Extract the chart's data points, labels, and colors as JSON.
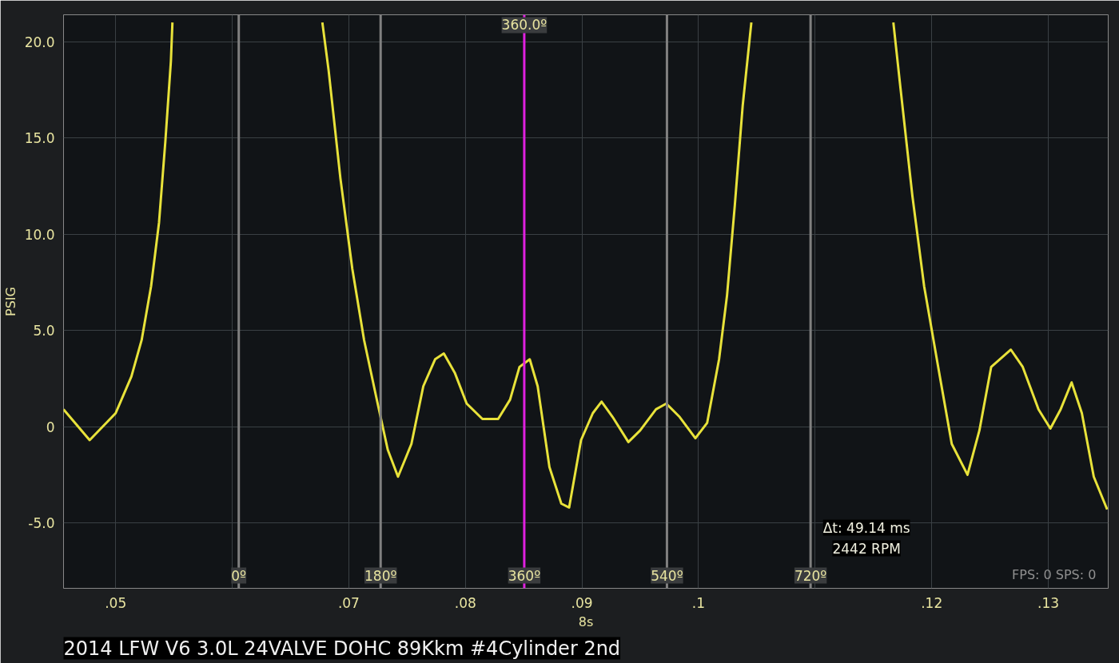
{
  "chart_data": {
    "type": "line",
    "title": "2014 LFW V6 3.0L 24VALVE DOHC 89Kkm #4Cylinder 2nd",
    "xlabel": "8s",
    "ylabel": "PSIG",
    "x": [
      0.04553,
      0.04777,
      0.05,
      0.05135,
      0.05223,
      0.05304,
      0.05372,
      0.05426,
      0.05474,
      0.05487,
      null,
      0.06773,
      0.06827,
      0.06928,
      0.0703,
      0.07131,
      0.07233,
      0.07334,
      0.07422,
      0.07537,
      0.07639,
      0.0774,
      0.07815,
      0.07909,
      0.08011,
      0.08146,
      0.08281,
      0.08383,
      0.08464,
      0.08552,
      0.0862,
      0.08721,
      0.08823,
      0.0889,
      0.08992,
      0.09093,
      0.09168,
      0.09263,
      0.09398,
      0.09499,
      0.09635,
      0.09723,
      0.09838,
      0.09973,
      0.10074,
      0.10176,
      0.10244,
      0.10311,
      0.10379,
      0.10453,
      null,
      0.11671,
      0.11732,
      0.11834,
      0.11935,
      0.1207,
      0.12172,
      0.12307,
      0.12409,
      0.1251,
      0.12679,
      0.12781,
      0.12916,
      0.13018,
      0.13106,
      0.132,
      0.13288,
      0.1339,
      0.13505
    ],
    "series": [
      {
        "color": "#e8e23a",
        "values": [
          0.9,
          -0.7,
          0.7,
          2.6,
          4.5,
          7.3,
          10.6,
          14.8,
          19.0,
          21.0,
          null,
          21.0,
          18.5,
          12.9,
          8.2,
          4.5,
          1.6,
          -1.2,
          -2.6,
          -0.9,
          2.1,
          3.5,
          3.8,
          2.8,
          1.2,
          0.4,
          0.4,
          1.4,
          3.1,
          3.5,
          2.1,
          -2.1,
          -4.0,
          -4.2,
          -0.7,
          0.7,
          1.3,
          0.5,
          -0.8,
          -0.2,
          0.9,
          1.2,
          0.5,
          -0.6,
          0.2,
          3.5,
          6.8,
          11.5,
          16.7,
          21.0,
          null,
          21.0,
          17.6,
          12.0,
          7.3,
          2.6,
          -0.9,
          -2.5,
          -0.2,
          3.1,
          4.0,
          3.1,
          0.9,
          -0.1,
          0.9,
          2.3,
          0.7,
          -2.6,
          -4.3
        ]
      }
    ],
    "xlim": [
      0.04553,
      0.13514
    ],
    "ylim": [
      -8.4,
      21.4
    ],
    "xticks": [
      {
        "value": 0.05,
        "label": ".05"
      },
      {
        "value": 0.06,
        "label": null
      },
      {
        "value": 0.07,
        "label": ".07"
      },
      {
        "value": 0.08,
        "label": ".08"
      },
      {
        "value": 0.09,
        "label": ".09"
      },
      {
        "value": 0.1,
        "label": ".1"
      },
      {
        "value": 0.11,
        "label": null
      },
      {
        "value": 0.12,
        "label": ".12"
      },
      {
        "value": 0.13,
        "label": ".13"
      }
    ],
    "yticks": [
      {
        "value": -5,
        "label": "-5.0"
      },
      0,
      {
        "value": 5,
        "label": "5.0"
      },
      {
        "value": 10,
        "label": "10.0"
      },
      {
        "value": 15,
        "label": "15.0"
      },
      {
        "value": 20,
        "label": "20.0"
      }
    ],
    "ref_lines": [
      {
        "axis": "x",
        "value": 0.06056,
        "color": "#808080"
      },
      {
        "axis": "x",
        "value": 0.07273,
        "color": "#808080"
      },
      {
        "axis": "x",
        "value": 0.08505,
        "color": "#e020e0"
      },
      {
        "axis": "x",
        "value": 0.09729,
        "color": "#808080"
      },
      {
        "axis": "x",
        "value": 0.10961,
        "color": "#808080"
      }
    ],
    "annotations": [
      {
        "text": "360.0º",
        "x": 0.08505,
        "y": 20.2
      },
      {
        "text": "0º",
        "x": 0.06056,
        "y": -8.4
      },
      {
        "text": "180º",
        "x": 0.07273,
        "y": -8.4
      },
      {
        "text": "360º",
        "x": 0.08505,
        "y": -8.4
      },
      {
        "text": "540º",
        "x": 0.09729,
        "y": -8.4
      },
      {
        "text": "720º",
        "x": 0.10961,
        "y": -8.4
      },
      "Δt: 49.14 ms",
      "2442 RPM",
      "FPS: 0  SPS: 0"
    ],
    "grid": true,
    "marker": "none",
    "line_style": "solid"
  }
}
